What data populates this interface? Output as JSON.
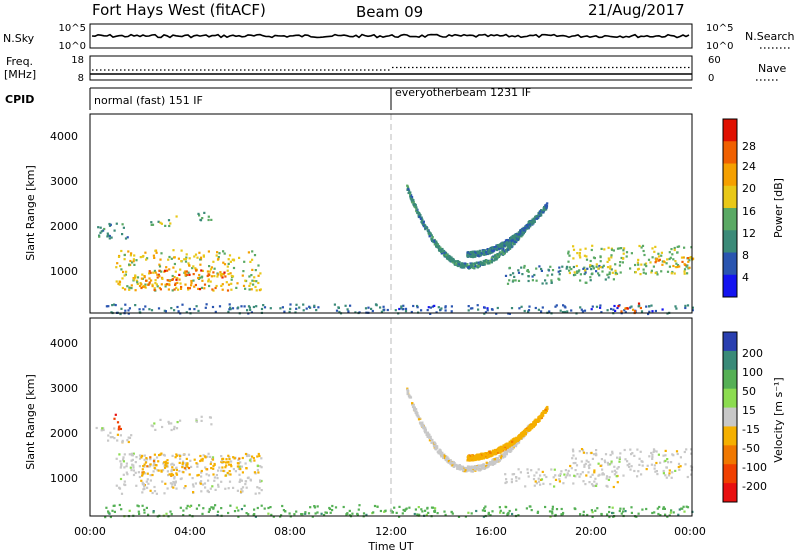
{
  "header": {
    "station": "Fort Hays West (fitACF)",
    "beam": "Beam 09",
    "date": "21/Aug/2017"
  },
  "top_panels": {
    "nsky_label": "N.Sky",
    "nsky_ticks": [
      "10^5",
      "10^0"
    ],
    "nsearch_label": "N.Search",
    "nsearch_ticks": [
      "10^5",
      "10^0"
    ],
    "freq_label_1": "Freq.",
    "freq_label_2": "[MHz]",
    "freq_ticks": [
      "18",
      "8"
    ],
    "nave_label": "Nave",
    "nave_ticks": [
      "60",
      "0"
    ],
    "cpid_label": "CPID",
    "cpid_segments": [
      {
        "label": "normal (fast) 151 IF",
        "start_hour": 0
      },
      {
        "label": "everyotherbeam 1231 IF",
        "start_hour": 12
      }
    ]
  },
  "chart_data": [
    {
      "type": "heatmap",
      "xlabel": "",
      "ylabel": "Slant Range [km]",
      "xlim": [
        0,
        24
      ],
      "ylim": [
        180,
        4600
      ],
      "yticks": [
        "1000",
        "2000",
        "3000",
        "4000"
      ],
      "colorbar": {
        "label": "Power [dB]",
        "range": [
          0,
          32
        ],
        "ticks": [
          "4",
          "8",
          "12",
          "16",
          "20",
          "24",
          "28"
        ],
        "colors": [
          "#1414f0",
          "#2a55b0",
          "#3b8a78",
          "#5aa964",
          "#e8c818",
          "#f5a000",
          "#f06000",
          "#e01000"
        ]
      },
      "blobs": [
        {
          "t0": 0.2,
          "t1": 1.6,
          "r0": 1850,
          "r1": 2200,
          "v": 10
        },
        {
          "t0": 2.4,
          "t1": 3.6,
          "r0": 2100,
          "r1": 2350,
          "v": 14
        },
        {
          "t0": 4.1,
          "t1": 4.9,
          "r0": 2250,
          "r1": 2450,
          "v": 13
        },
        {
          "t0": 1.0,
          "t1": 6.8,
          "r0": 700,
          "r1": 1600,
          "v": 18
        },
        {
          "t0": 2.0,
          "t1": 5.5,
          "r0": 700,
          "r1": 1150,
          "v": 25
        },
        {
          "t0": 0.5,
          "t1": 12.0,
          "r0": 180,
          "r1": 400,
          "v": 8
        },
        {
          "t0": 12.0,
          "t1": 24.0,
          "r0": 180,
          "r1": 380,
          "v": 7
        },
        {
          "t0": 16.5,
          "t1": 21.0,
          "r0": 850,
          "r1": 1250,
          "v": 11
        },
        {
          "t0": 19.0,
          "t1": 24.0,
          "r0": 1050,
          "r1": 1700,
          "v": 16
        },
        {
          "t0": 22.5,
          "t1": 24.0,
          "r0": 1200,
          "r1": 1450,
          "v": 24
        },
        {
          "t0": 21.0,
          "t1": 22.0,
          "r0": 200,
          "r1": 420,
          "v": 27
        }
      ],
      "arcs": [
        {
          "t0": 12.6,
          "t1": 17.5,
          "rmin": 1250,
          "rmax": 3000,
          "shape": "down",
          "v": 10
        },
        {
          "t0": 15.0,
          "t1": 18.2,
          "rmin": 1500,
          "rmax": 2600,
          "shape": "up",
          "v": 9
        }
      ]
    },
    {
      "type": "heatmap",
      "xlabel": "Time UT",
      "ylabel": "Slant Range [km]",
      "xlim": [
        0,
        24
      ],
      "ylim": [
        180,
        4600
      ],
      "yticks": [
        "1000",
        "2000",
        "3000",
        "4000"
      ],
      "xticks": [
        "00:00",
        "04:00",
        "08:00",
        "12:00",
        "16:00",
        "20:00",
        "00:00"
      ],
      "colorbar": {
        "label": "Velocity [m s⁻¹]",
        "ticks": [
          "200",
          "100",
          "50",
          "15",
          "-15",
          "-50",
          "-100",
          "-200"
        ],
        "colors": [
          "#2a3fb0",
          "#3a8a78",
          "#55b055",
          "#8cdc50",
          "#c8c8c8",
          "#f5b000",
          "#f07800",
          "#f04000",
          "#e81010"
        ]
      },
      "blobs": [
        {
          "t0": 0.2,
          "t1": 1.6,
          "r0": 1850,
          "r1": 2200,
          "v": 4
        },
        {
          "t0": 2.4,
          "t1": 3.6,
          "r0": 2100,
          "r1": 2350,
          "v": 4
        },
        {
          "t0": 4.1,
          "t1": 4.9,
          "r0": 2250,
          "r1": 2450,
          "v": 4
        },
        {
          "t0": 1.0,
          "t1": 6.8,
          "r0": 700,
          "r1": 1600,
          "v": 4
        },
        {
          "t0": 2.0,
          "t1": 6.8,
          "r0": 1100,
          "r1": 1600,
          "v": 5
        },
        {
          "t0": 0.5,
          "t1": 12.0,
          "r0": 180,
          "r1": 450,
          "v": 2
        },
        {
          "t0": 12.0,
          "t1": 24.0,
          "r0": 180,
          "r1": 420,
          "v": 2
        },
        {
          "t0": 16.5,
          "t1": 21.0,
          "r0": 850,
          "r1": 1250,
          "v": 4
        },
        {
          "t0": 19.0,
          "t1": 24.0,
          "r0": 1050,
          "r1": 1700,
          "v": 4
        },
        {
          "t0": 0.9,
          "t1": 1.2,
          "r0": 2100,
          "r1": 2500,
          "v": 7
        }
      ],
      "arcs": [
        {
          "t0": 12.6,
          "t1": 17.5,
          "rmin": 1250,
          "rmax": 3000,
          "shape": "down",
          "v": 4
        },
        {
          "t0": 15.0,
          "t1": 18.2,
          "rmin": 1500,
          "rmax": 2600,
          "shape": "up",
          "v": 5
        }
      ]
    }
  ]
}
